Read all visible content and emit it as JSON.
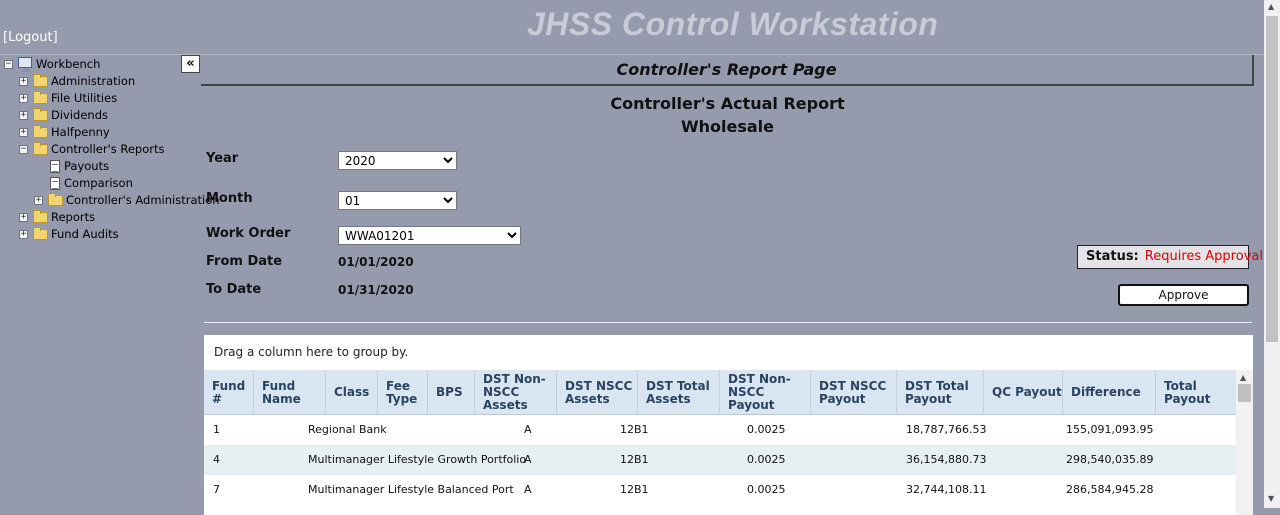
{
  "header": {
    "app_title": "JHSS Control Workstation",
    "logout": "[Logout]"
  },
  "tree": {
    "collapse": "«",
    "items": [
      {
        "label": "Workbench"
      },
      {
        "label": "Administration"
      },
      {
        "label": "File Utilities"
      },
      {
        "label": "Dividends"
      },
      {
        "label": "Halfpenny"
      },
      {
        "label": "Controller's Reports"
      },
      {
        "label": "Payouts"
      },
      {
        "label": "Comparison"
      },
      {
        "label": "Controller's Administration"
      },
      {
        "label": "Reports"
      },
      {
        "label": "Fund Audits"
      }
    ]
  },
  "page": {
    "header": "Controller's Report Page",
    "title1": "Controller's Actual Report",
    "title2": "Wholesale"
  },
  "form": {
    "year_label": "Year",
    "year_value": "2020",
    "month_label": "Month",
    "month_value": "01",
    "work_order_label": "Work Order",
    "work_order_value": "WWA01201",
    "from_label": "From Date",
    "from_value": "01/01/2020",
    "to_label": "To Date",
    "to_value": "01/31/2020"
  },
  "status": {
    "label": "Status:",
    "value": "Requires Approval",
    "value_color": "#e00000"
  },
  "approve_label": "Approve",
  "grid": {
    "group_hint": "Drag a column here to group by.",
    "columns": [
      {
        "label": "Fund #"
      },
      {
        "label": "Fund Name"
      },
      {
        "label": "Class"
      },
      {
        "label": "Fee Type"
      },
      {
        "label": "BPS"
      },
      {
        "label": "DST Non-NSCC Assets"
      },
      {
        "label": "DST NSCC Assets"
      },
      {
        "label": "DST Total Assets"
      },
      {
        "label": "DST Non-NSCC Payout"
      },
      {
        "label": "DST NSCC Payout"
      },
      {
        "label": "DST Total Payout"
      },
      {
        "label": "QC Payout"
      },
      {
        "label": "Difference"
      },
      {
        "label": "Total Payout"
      }
    ],
    "rows": [
      {
        "fund": "1",
        "name": "Regional Bank",
        "class": "A",
        "fee": "12B1",
        "bps": "0.0025",
        "payout": "18,787,766.53",
        "diff": "155,091,093.95"
      },
      {
        "fund": "4",
        "name": "Multimanager Lifestyle Growth Portfolio",
        "class": "A",
        "fee": "12B1",
        "bps": "0.0025",
        "payout": "36,154,880.73",
        "diff": "298,540,035.89"
      },
      {
        "fund": "7",
        "name": "Multimanager Lifestyle Balanced Port",
        "class": "A",
        "fee": "12B1",
        "bps": "0.0025",
        "payout": "32,744,108.11",
        "diff": "286,584,945.28"
      }
    ]
  }
}
